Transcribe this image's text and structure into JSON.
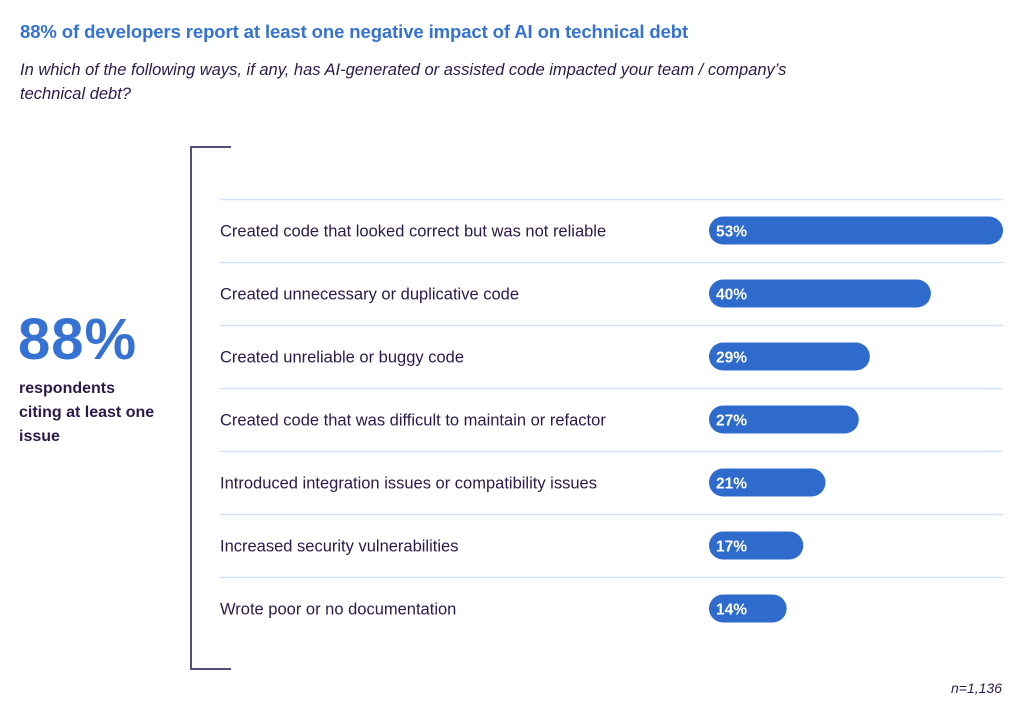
{
  "title": "88% of developers report at least one negative impact of AI on technical debt",
  "subtitle": "In which of the following ways, if any, has AI-generated or assisted code impacted your team / company’s technical debt?",
  "highlight": {
    "value": "88%",
    "label": "respondents citing at least one issue"
  },
  "footnote": "n=1,136",
  "colors": {
    "accent": "#3572d3",
    "bar": "#2f6bcc",
    "text": "#2b1a4d",
    "separator": "#d3e3f5",
    "bracket": "#5b4a7d"
  },
  "chart_data": {
    "type": "bar",
    "orientation": "horizontal",
    "title": "88% of developers report at least one negative impact of AI on technical debt",
    "xlabel": "",
    "ylabel": "",
    "unit": "%",
    "xlim": [
      0,
      53
    ],
    "grid": false,
    "categories": [
      "Created code that looked correct but was not reliable",
      "Created unnecessary or duplicative code",
      "Created unreliable or buggy code",
      "Created code that was difficult to maintain or refactor",
      "Introduced integration issues or compatibility issues",
      "Increased security vulnerabilities",
      "Wrote poor or no documentation"
    ],
    "values": [
      53,
      40,
      29,
      27,
      21,
      17,
      14
    ],
    "data_labels": [
      "53%",
      "40%",
      "29%",
      "27%",
      "21%",
      "17%",
      "14%"
    ]
  }
}
